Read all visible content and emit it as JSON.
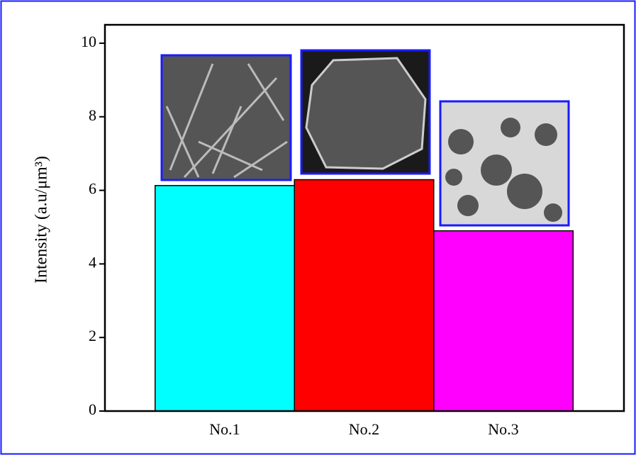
{
  "chart_data": {
    "type": "bar",
    "ylabel": "Intensity (a.u/μm³)",
    "categories": [
      "No.1",
      "No.2",
      "No.3"
    ],
    "values": [
      6.13,
      6.29,
      4.9
    ],
    "colors": [
      "#00ffff",
      "#ff0000",
      "#ff00ff"
    ],
    "ylim": [
      0,
      10.5
    ],
    "yticks": [
      0,
      2,
      4,
      6,
      8,
      10
    ],
    "grid": false
  }
}
